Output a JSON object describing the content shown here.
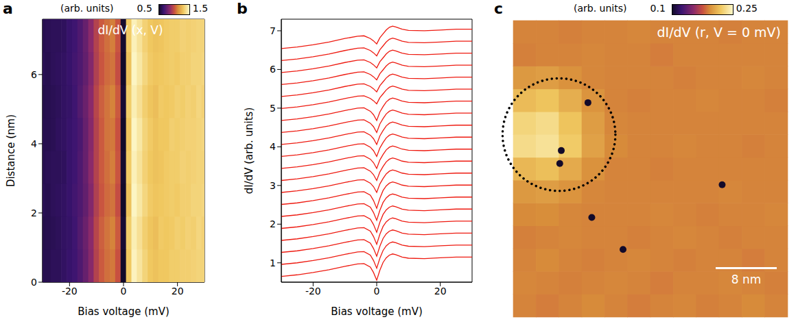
{
  "chart_data": [
    {
      "panel": "a",
      "type": "heatmap",
      "title": "dI/dV (x, V)",
      "x_label": "Bias voltage (mV)",
      "y_label": "Distance (nm)",
      "xlim": [
        -30,
        30
      ],
      "xticks": [
        -20,
        0,
        20
      ],
      "ylim": [
        0,
        7.6
      ],
      "yticks": [
        0,
        2,
        4,
        6
      ],
      "x": [
        -30,
        -28,
        -26,
        -24,
        -22,
        -20,
        -18,
        -16,
        -14,
        -12,
        -10,
        -8,
        -6,
        -4,
        -2,
        0,
        2,
        4,
        6,
        8,
        10,
        12,
        14,
        16,
        18,
        20,
        22,
        24,
        26,
        28,
        30
      ],
      "y": [
        0.475,
        1.425,
        2.375,
        3.325,
        4.275,
        5.225,
        6.175,
        7.125
      ],
      "cells": [
        [
          0.58,
          0.58,
          0.6,
          0.6,
          0.62,
          0.64,
          0.66,
          0.7,
          0.76,
          0.84,
          0.95,
          1.02,
          1.06,
          1.08,
          1.0,
          0.5,
          1.3,
          1.48,
          1.42,
          1.35,
          1.3,
          1.28,
          1.3,
          1.3,
          1.32,
          1.32,
          1.33,
          1.33,
          1.34,
          1.35,
          1.35
        ],
        [
          0.57,
          0.58,
          0.59,
          0.6,
          0.62,
          0.63,
          0.66,
          0.71,
          0.77,
          0.85,
          0.96,
          1.03,
          1.07,
          1.1,
          1.02,
          0.52,
          1.32,
          1.46,
          1.4,
          1.33,
          1.29,
          1.27,
          1.31,
          1.3,
          1.31,
          1.33,
          1.32,
          1.34,
          1.33,
          1.36,
          1.34
        ],
        [
          0.59,
          0.58,
          0.6,
          0.61,
          0.62,
          0.64,
          0.67,
          0.7,
          0.75,
          0.83,
          0.94,
          1.01,
          1.05,
          1.07,
          0.99,
          0.49,
          1.28,
          1.49,
          1.43,
          1.36,
          1.31,
          1.29,
          1.3,
          1.31,
          1.32,
          1.31,
          1.33,
          1.33,
          1.35,
          1.35,
          1.36
        ],
        [
          0.58,
          0.59,
          0.6,
          0.6,
          0.61,
          0.64,
          0.66,
          0.7,
          0.76,
          0.85,
          0.95,
          1.02,
          1.06,
          1.09,
          1.01,
          0.51,
          1.31,
          1.47,
          1.41,
          1.34,
          1.3,
          1.28,
          1.29,
          1.31,
          1.32,
          1.32,
          1.34,
          1.33,
          1.34,
          1.35,
          1.35
        ],
        [
          0.58,
          0.58,
          0.59,
          0.61,
          0.62,
          0.64,
          0.66,
          0.69,
          0.76,
          0.84,
          0.95,
          1.02,
          1.07,
          1.08,
          1.0,
          0.5,
          1.29,
          1.49,
          1.43,
          1.35,
          1.31,
          1.28,
          1.3,
          1.3,
          1.33,
          1.32,
          1.33,
          1.34,
          1.34,
          1.35,
          1.36
        ],
        [
          0.57,
          0.58,
          0.59,
          0.6,
          0.62,
          0.63,
          0.66,
          0.71,
          0.77,
          0.85,
          0.96,
          1.03,
          1.07,
          1.1,
          1.02,
          0.52,
          1.32,
          1.46,
          1.4,
          1.33,
          1.29,
          1.27,
          1.31,
          1.3,
          1.31,
          1.33,
          1.32,
          1.34,
          1.33,
          1.36,
          1.34
        ],
        [
          0.59,
          0.58,
          0.6,
          0.61,
          0.62,
          0.64,
          0.67,
          0.7,
          0.75,
          0.83,
          0.94,
          1.01,
          1.05,
          1.07,
          0.99,
          0.49,
          1.28,
          1.49,
          1.43,
          1.36,
          1.31,
          1.29,
          1.3,
          1.31,
          1.32,
          1.31,
          1.33,
          1.33,
          1.35,
          1.35,
          1.36
        ],
        [
          0.58,
          0.59,
          0.6,
          0.6,
          0.61,
          0.64,
          0.66,
          0.7,
          0.76,
          0.85,
          0.95,
          1.02,
          1.06,
          1.09,
          1.01,
          0.51,
          1.31,
          1.47,
          1.41,
          1.34,
          1.3,
          1.28,
          1.29,
          1.31,
          1.32,
          1.32,
          1.34,
          1.33,
          1.34,
          1.35,
          1.35
        ]
      ],
      "colorbar": {
        "label": "(arb. units)",
        "range": [
          0.5,
          1.5
        ],
        "ticks": [
          0.5,
          1.5
        ]
      }
    },
    {
      "panel": "b",
      "type": "line",
      "x_label": "Bias voltage (mV)",
      "y_label": "dI/dV (arb. units)",
      "xlim": [
        -30,
        30
      ],
      "xticks": [
        -20,
        0,
        20
      ],
      "ylim": [
        0.5,
        7.3
      ],
      "yticks": [
        1,
        2,
        3,
        4,
        5,
        6,
        7
      ],
      "x": [
        -30,
        -25,
        -20,
        -15,
        -10,
        -6,
        -4,
        -2,
        -1,
        0,
        1,
        2,
        3,
        4,
        5,
        6,
        8,
        10,
        15,
        20,
        25,
        30
      ],
      "series": [
        {
          "color": "#ee1a10",
          "values": [
            0.65,
            0.69,
            0.75,
            0.82,
            0.91,
            0.97,
            0.98,
            0.89,
            0.75,
            0.55,
            0.81,
            1.01,
            1.13,
            1.2,
            1.23,
            1.21,
            1.15,
            1.12,
            1.11,
            1.13,
            1.15,
            1.15
          ]
        },
        {
          "color": "#ee1a10",
          "values": [
            0.96,
            1.0,
            1.06,
            1.13,
            1.22,
            1.28,
            1.29,
            1.2,
            1.06,
            0.86,
            1.12,
            1.32,
            1.44,
            1.51,
            1.54,
            1.52,
            1.46,
            1.43,
            1.42,
            1.44,
            1.46,
            1.46
          ]
        },
        {
          "color": "#ee1a10",
          "values": [
            1.27,
            1.31,
            1.37,
            1.44,
            1.53,
            1.59,
            1.6,
            1.51,
            1.37,
            1.17,
            1.43,
            1.63,
            1.75,
            1.82,
            1.85,
            1.83,
            1.77,
            1.74,
            1.73,
            1.75,
            1.77,
            1.77
          ]
        },
        {
          "color": "#ee1a10",
          "values": [
            1.58,
            1.62,
            1.68,
            1.75,
            1.84,
            1.9,
            1.91,
            1.82,
            1.68,
            1.48,
            1.74,
            1.94,
            2.06,
            2.13,
            2.16,
            2.14,
            2.08,
            2.05,
            2.04,
            2.06,
            2.08,
            2.08
          ]
        },
        {
          "color": "#ee1a10",
          "values": [
            1.89,
            1.93,
            1.99,
            2.06,
            2.15,
            2.21,
            2.22,
            2.13,
            1.99,
            1.79,
            2.05,
            2.25,
            2.37,
            2.44,
            2.47,
            2.45,
            2.39,
            2.36,
            2.35,
            2.37,
            2.39,
            2.39
          ]
        },
        {
          "color": "#ee1a10",
          "values": [
            2.2,
            2.24,
            2.3,
            2.37,
            2.46,
            2.52,
            2.53,
            2.44,
            2.3,
            2.1,
            2.36,
            2.56,
            2.68,
            2.75,
            2.78,
            2.76,
            2.7,
            2.67,
            2.66,
            2.68,
            2.7,
            2.7
          ]
        },
        {
          "color": "#ee1a10",
          "values": [
            2.51,
            2.55,
            2.61,
            2.68,
            2.77,
            2.83,
            2.84,
            2.75,
            2.61,
            2.41,
            2.67,
            2.87,
            2.99,
            3.06,
            3.09,
            3.07,
            3.01,
            2.98,
            2.97,
            2.99,
            3.01,
            3.01
          ]
        },
        {
          "color": "#ee1a10",
          "values": [
            2.82,
            2.86,
            2.92,
            2.99,
            3.08,
            3.14,
            3.15,
            3.06,
            2.97,
            2.82,
            3.04,
            3.18,
            3.3,
            3.37,
            3.4,
            3.38,
            3.32,
            3.29,
            3.28,
            3.3,
            3.32,
            3.32
          ]
        },
        {
          "color": "#ee1a10",
          "values": [
            3.13,
            3.17,
            3.23,
            3.3,
            3.39,
            3.45,
            3.46,
            3.37,
            3.28,
            3.13,
            3.35,
            3.49,
            3.61,
            3.68,
            3.71,
            3.69,
            3.63,
            3.6,
            3.59,
            3.61,
            3.63,
            3.63
          ]
        },
        {
          "color": "#ee1a10",
          "values": [
            3.44,
            3.48,
            3.54,
            3.61,
            3.7,
            3.76,
            3.77,
            3.68,
            3.59,
            3.44,
            3.66,
            3.8,
            3.92,
            3.99,
            4.02,
            4.0,
            3.94,
            3.91,
            3.9,
            3.92,
            3.94,
            3.94
          ]
        },
        {
          "color": "#ee1a10",
          "values": [
            3.75,
            3.79,
            3.85,
            3.92,
            4.01,
            4.07,
            4.08,
            3.99,
            3.9,
            3.75,
            3.97,
            4.11,
            4.23,
            4.3,
            4.33,
            4.31,
            4.25,
            4.22,
            4.21,
            4.23,
            4.25,
            4.25
          ]
        },
        {
          "color": "#ee1a10",
          "values": [
            4.06,
            4.1,
            4.16,
            4.23,
            4.32,
            4.38,
            4.39,
            4.3,
            4.21,
            4.06,
            4.28,
            4.42,
            4.54,
            4.61,
            4.64,
            4.62,
            4.56,
            4.53,
            4.52,
            4.54,
            4.56,
            4.56
          ]
        },
        {
          "color": "#ee1a10",
          "values": [
            4.37,
            4.41,
            4.47,
            4.54,
            4.63,
            4.69,
            4.7,
            4.61,
            4.52,
            4.37,
            4.59,
            4.73,
            4.85,
            4.92,
            4.95,
            4.93,
            4.87,
            4.84,
            4.83,
            4.85,
            4.87,
            4.87
          ]
        },
        {
          "color": "#ee1a10",
          "values": [
            4.68,
            4.72,
            4.78,
            4.85,
            4.94,
            5.0,
            5.01,
            4.92,
            4.83,
            4.68,
            4.9,
            5.04,
            5.16,
            5.23,
            5.26,
            5.24,
            5.18,
            5.15,
            5.14,
            5.16,
            5.18,
            5.18
          ]
        },
        {
          "color": "#ee1a10",
          "values": [
            4.99,
            5.03,
            5.09,
            5.16,
            5.25,
            5.31,
            5.32,
            5.25,
            5.19,
            5.11,
            5.27,
            5.37,
            5.47,
            5.54,
            5.57,
            5.55,
            5.49,
            5.46,
            5.45,
            5.47,
            5.49,
            5.49
          ]
        },
        {
          "color": "#ee1a10",
          "values": [
            5.3,
            5.34,
            5.4,
            5.47,
            5.56,
            5.62,
            5.63,
            5.56,
            5.5,
            5.42,
            5.58,
            5.68,
            5.78,
            5.85,
            5.88,
            5.86,
            5.8,
            5.77,
            5.76,
            5.78,
            5.8,
            5.8
          ]
        },
        {
          "color": "#ee1a10",
          "values": [
            5.61,
            5.65,
            5.71,
            5.78,
            5.87,
            5.93,
            5.94,
            5.87,
            5.81,
            5.73,
            5.89,
            5.99,
            6.09,
            6.16,
            6.19,
            6.17,
            6.11,
            6.08,
            6.07,
            6.09,
            6.11,
            6.11
          ]
        },
        {
          "color": "#ee1a10",
          "values": [
            5.92,
            5.96,
            6.02,
            6.09,
            6.18,
            6.24,
            6.25,
            6.18,
            6.12,
            6.04,
            6.2,
            6.3,
            6.4,
            6.47,
            6.5,
            6.48,
            6.42,
            6.39,
            6.38,
            6.4,
            6.42,
            6.42
          ]
        },
        {
          "color": "#ee1a10",
          "values": [
            6.23,
            6.27,
            6.33,
            6.4,
            6.49,
            6.55,
            6.56,
            6.49,
            6.43,
            6.35,
            6.51,
            6.61,
            6.71,
            6.78,
            6.81,
            6.79,
            6.73,
            6.7,
            6.69,
            6.71,
            6.73,
            6.73
          ]
        },
        {
          "color": "#ee1a10",
          "values": [
            6.54,
            6.58,
            6.64,
            6.71,
            6.8,
            6.86,
            6.87,
            6.8,
            6.74,
            6.66,
            6.82,
            6.92,
            7.02,
            7.09,
            7.12,
            7.1,
            7.04,
            7.01,
            7.0,
            7.02,
            7.04,
            7.04
          ]
        }
      ]
    },
    {
      "panel": "c",
      "type": "heatmap",
      "title": "dI/dV (r, V = 0 mV)",
      "tick_labels": false,
      "xlim": [
        0,
        36
      ],
      "ylim": [
        0,
        39
      ],
      "x": [
        1.5,
        4.5,
        7.5,
        10.5,
        13.5,
        16.5,
        19.5,
        22.5,
        25.5,
        28.5,
        31.5,
        34.5
      ],
      "y": [
        1.5,
        4.5,
        7.5,
        10.5,
        13.5,
        16.5,
        19.5,
        22.5,
        25.5,
        28.5,
        31.5,
        34.5,
        37.5
      ],
      "cells": [
        [
          0.19,
          0.188,
          0.19,
          0.192,
          0.19,
          0.188,
          0.19,
          0.191,
          0.189,
          0.19,
          0.192,
          0.19
        ],
        [
          0.191,
          0.19,
          0.189,
          0.19,
          0.191,
          0.19,
          0.188,
          0.19,
          0.19,
          0.191,
          0.19,
          0.189
        ],
        [
          0.19,
          0.192,
          0.19,
          0.189,
          0.19,
          0.191,
          0.19,
          0.189,
          0.19,
          0.19,
          0.188,
          0.19
        ],
        [
          0.189,
          0.19,
          0.191,
          0.19,
          0.19,
          0.189,
          0.19,
          0.191,
          0.19,
          0.189,
          0.19,
          0.19
        ],
        [
          0.192,
          0.193,
          0.191,
          0.19,
          0.19,
          0.19,
          0.191,
          0.19,
          0.189,
          0.19,
          0.19,
          0.191
        ],
        [
          0.198,
          0.2,
          0.196,
          0.191,
          0.19,
          0.19,
          0.19,
          0.19,
          0.19,
          0.191,
          0.19,
          0.19
        ],
        [
          0.212,
          0.216,
          0.206,
          0.195,
          0.19,
          0.19,
          0.189,
          0.19,
          0.19,
          0.19,
          0.19,
          0.19
        ],
        [
          0.232,
          0.236,
          0.222,
          0.202,
          0.192,
          0.19,
          0.19,
          0.191,
          0.19,
          0.19,
          0.189,
          0.19
        ],
        [
          0.228,
          0.232,
          0.218,
          0.2,
          0.191,
          0.19,
          0.19,
          0.19,
          0.19,
          0.19,
          0.19,
          0.19
        ],
        [
          0.214,
          0.218,
          0.208,
          0.196,
          0.19,
          0.189,
          0.19,
          0.19,
          0.191,
          0.19,
          0.19,
          0.189
        ],
        [
          0.198,
          0.2,
          0.195,
          0.191,
          0.19,
          0.19,
          0.19,
          0.189,
          0.19,
          0.19,
          0.191,
          0.19
        ],
        [
          0.189,
          0.19,
          0.19,
          0.191,
          0.19,
          0.19,
          0.188,
          0.19,
          0.19,
          0.19,
          0.19,
          0.19
        ],
        [
          0.19,
          0.19,
          0.189,
          0.19,
          0.19,
          0.191,
          0.19,
          0.19,
          0.19,
          0.189,
          0.19,
          0.19
        ]
      ],
      "defects": {
        "x": [
          9.8,
          6.3,
          6.1,
          27.4,
          10.3,
          14.4
        ],
        "y": [
          28.2,
          21.9,
          20.2,
          17.4,
          13.1,
          8.9
        ],
        "values": [
          0.1,
          0.1,
          0.1,
          0.1,
          0.1,
          0.1
        ]
      },
      "circle": {
        "x": 6,
        "y": 24,
        "r": 7.4
      },
      "scale_bar": {
        "length": 8,
        "label": "8 nm"
      },
      "colorbar": {
        "label": "(arb. units)",
        "range": [
          0.1,
          0.25
        ],
        "ticks": [
          0.1,
          0.25
        ]
      }
    }
  ]
}
